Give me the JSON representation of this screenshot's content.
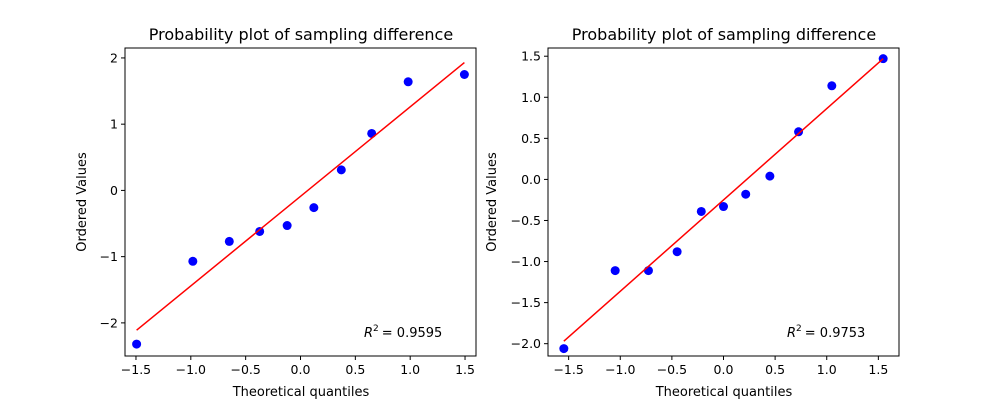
{
  "chart_data": [
    {
      "type": "scatter",
      "title": "Probability plot of sampling difference",
      "xlabel": "Theoretical quantiles",
      "ylabel": "Ordered Values",
      "xlim": [
        -1.6,
        1.6
      ],
      "ylim": [
        -2.5,
        2.15
      ],
      "xticks": [
        -1.5,
        -1.0,
        -0.5,
        0.0,
        0.5,
        1.0,
        1.5
      ],
      "xtick_labels": [
        "−1.5",
        "−1.0",
        "−0.5",
        "0.0",
        "0.5",
        "1.0",
        "1.5"
      ],
      "yticks": [
        -2,
        -1,
        0,
        1,
        2
      ],
      "ytick_labels": [
        "−2",
        "−1",
        "0",
        "1",
        "2"
      ],
      "x": [
        -1.4942,
        -0.9816,
        -0.6491,
        -0.372,
        -0.1217,
        0.1217,
        0.372,
        0.6491,
        0.9816,
        1.4942
      ],
      "y": [
        -2.32,
        -1.07,
        -0.77,
        -0.62,
        -0.53,
        -0.26,
        0.31,
        0.86,
        1.64,
        1.75
      ],
      "fit_line": {
        "x": [
          -1.4942,
          1.4942
        ],
        "y": [
          -2.11,
          1.93
        ]
      },
      "r_squared_label": "R² = 0.9595",
      "r_squared_prefix": "R",
      "r_squared_exp": "2",
      "r_squared_value": "= 0.9595",
      "point_color": "#0000ff",
      "line_color": "#ff0000",
      "grid": false
    },
    {
      "type": "scatter",
      "title": "Probability plot of sampling difference",
      "xlabel": "Theoretical quantiles",
      "ylabel": "Ordered Values",
      "xlim": [
        -1.7,
        1.7
      ],
      "ylim": [
        -2.15,
        1.6
      ],
      "xticks": [
        -1.5,
        -1.0,
        -0.5,
        0.0,
        0.5,
        1.0,
        1.5
      ],
      "xtick_labels": [
        "−1.5",
        "−1.0",
        "−0.5",
        "0.0",
        "0.5",
        "1.0",
        "1.5"
      ],
      "yticks": [
        -2.0,
        -1.5,
        -1.0,
        -0.5,
        0.0,
        0.5,
        1.0,
        1.5
      ],
      "ytick_labels": [
        "−2.0",
        "−1.5",
        "−1.0",
        "−0.5",
        "0.0",
        "0.5",
        "1.0",
        "1.5"
      ],
      "x": [
        -1.5466,
        -1.0492,
        -0.7271,
        -0.4492,
        -0.2152,
        0.0,
        0.2152,
        0.4492,
        0.7271,
        1.0492,
        1.5466
      ],
      "y": [
        -2.06,
        -1.11,
        -1.11,
        -0.88,
        -0.39,
        -0.33,
        -0.18,
        0.04,
        0.58,
        1.14,
        1.47
      ],
      "fit_line": {
        "x": [
          -1.5466,
          1.5466
        ],
        "y": [
          -1.97,
          1.47
        ]
      },
      "r_squared_label": "R² = 0.9753",
      "r_squared_prefix": "R",
      "r_squared_exp": "2",
      "r_squared_value": "= 0.9753",
      "point_color": "#0000ff",
      "line_color": "#ff0000",
      "grid": false
    }
  ]
}
